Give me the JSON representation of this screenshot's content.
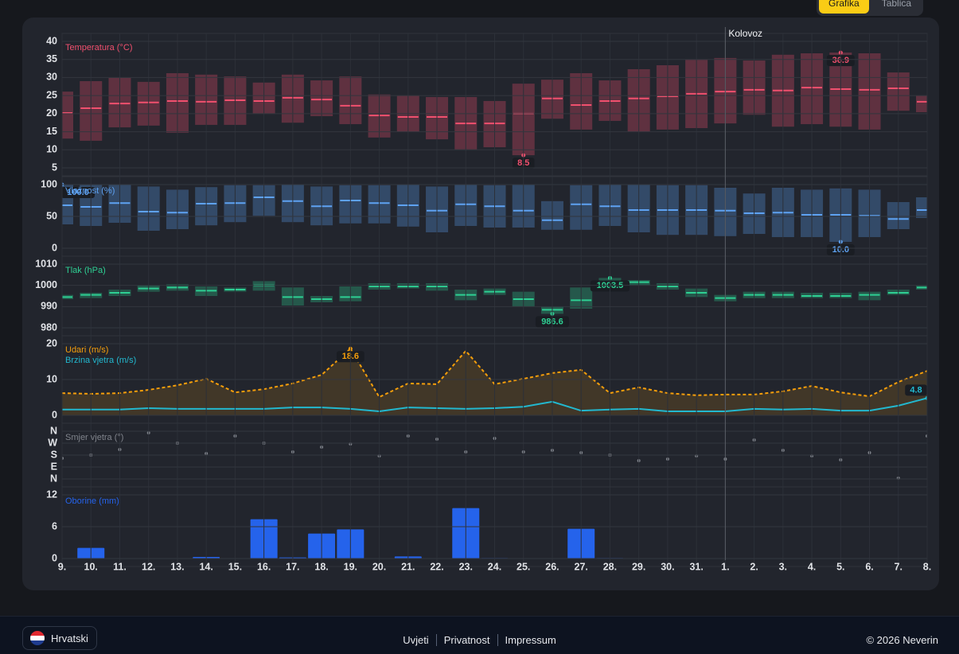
{
  "view_options": [
    "Grafika",
    "Tablica"
  ],
  "chart_data": [
    {
      "type": "range",
      "title": "Temperatura (°C)",
      "color": "#f0506e",
      "ylim": [
        5,
        40
      ],
      "yticks": [
        5,
        10,
        15,
        20,
        25,
        30,
        35,
        40
      ],
      "grid": true,
      "max": {
        "values": [
          26.1,
          29,
          29.9,
          28.8,
          31.2,
          30.8,
          30.3,
          28.6,
          30.8,
          29.2,
          30.3,
          25.3,
          25,
          24.6,
          24.6,
          23.5,
          28.3,
          29.4,
          31.2,
          29.2,
          32.3,
          33.4,
          34.9,
          35.4,
          34.7,
          36.3,
          36.7,
          36.9,
          36.7,
          31.4,
          25
        ],
        "value_labels": [
          null,
          null,
          null,
          null,
          null,
          null,
          null,
          null,
          null,
          null,
          null,
          null,
          null,
          null,
          null,
          null,
          null,
          null,
          null,
          null,
          null,
          null,
          null,
          null,
          null,
          null,
          null,
          "36.9",
          null,
          null,
          null
        ]
      },
      "min": {
        "values": [
          13.1,
          12.5,
          16.2,
          16.7,
          14.7,
          16.9,
          16.9,
          20,
          17.5,
          19.3,
          17.1,
          13.4,
          14.9,
          12.9,
          10.1,
          10.7,
          8.5,
          18.6,
          15.6,
          18,
          14.9,
          15.6,
          16,
          17.3,
          19.7,
          16.4,
          17.1,
          16.4,
          15.6,
          20.8,
          20.4
        ],
        "value_labels": [
          null,
          null,
          null,
          null,
          null,
          null,
          null,
          null,
          null,
          null,
          null,
          null,
          null,
          null,
          null,
          null,
          "8.5",
          null,
          null,
          null,
          null,
          null,
          null,
          null,
          null,
          null,
          null,
          null,
          null,
          null,
          null
        ]
      },
      "mean": {
        "values": [
          20.2,
          21.5,
          22.8,
          23.1,
          23.5,
          23.3,
          23.7,
          23.5,
          24.4,
          23.9,
          22.2,
          19.5,
          19.1,
          19.1,
          17.3,
          17.3,
          20,
          24.2,
          22.4,
          23.5,
          24.2,
          24.8,
          25.5,
          26.1,
          26.6,
          26.4,
          27.2,
          26.8,
          26.6,
          27,
          23.3
        ]
      }
    },
    {
      "type": "range",
      "title": "Vlažnost (%)",
      "color": "#5ea2f2",
      "ylim": [
        0,
        100
      ],
      "yticks": [
        0,
        50,
        100
      ],
      "grid": true,
      "max": {
        "values": [
          100,
          100,
          100,
          97,
          92,
          96,
          99,
          99,
          100,
          97,
          99,
          99,
          100,
          97,
          100,
          99,
          100,
          74,
          99,
          100,
          100,
          99,
          99,
          95,
          86,
          95,
          92,
          94,
          92,
          72.5,
          80
        ],
        "value_labels": [
          "100.0",
          null,
          null,
          null,
          null,
          null,
          null,
          null,
          null,
          null,
          null,
          null,
          null,
          null,
          null,
          null,
          null,
          null,
          null,
          null,
          null,
          null,
          null,
          null,
          null,
          null,
          null,
          null,
          null,
          null,
          null
        ]
      },
      "min": {
        "values": [
          37.5,
          35,
          40,
          27.5,
          30,
          36,
          41,
          51,
          41,
          36,
          39,
          39,
          34,
          25,
          35,
          32.5,
          32.5,
          29,
          29,
          35,
          25,
          21,
          21,
          19,
          22.5,
          17.5,
          17.5,
          10,
          17.5,
          30,
          47.5
        ],
        "value_labels": [
          null,
          null,
          null,
          null,
          null,
          null,
          null,
          null,
          null,
          null,
          null,
          null,
          null,
          null,
          null,
          null,
          null,
          null,
          null,
          null,
          null,
          null,
          null,
          null,
          null,
          null,
          null,
          "10.0",
          null,
          null,
          null
        ]
      },
      "mean": {
        "values": [
          67.5,
          65,
          71,
          57.5,
          56,
          70,
          71,
          80,
          74,
          66,
          75,
          71,
          67.5,
          59,
          69,
          66,
          59,
          44,
          69,
          66,
          60,
          60,
          60,
          59,
          55,
          56,
          52.5,
          52.5,
          51,
          46,
          60
        ]
      }
    },
    {
      "type": "range",
      "title": "Tlak (hPa)",
      "color": "#2ecf93",
      "ylim": [
        980,
        1010
      ],
      "yticks": [
        980,
        990,
        1000,
        1010
      ],
      "grid": true,
      "max": {
        "values": [
          995.5,
          996.5,
          998,
          1000,
          1000.5,
          999.5,
          999,
          1002,
          999,
          995,
          999.5,
          1001,
          1001,
          1001,
          998,
          998.5,
          997,
          990,
          999,
          1003.5,
          1002.5,
          1001,
          998.5,
          995.5,
          997,
          997,
          996.5,
          996.5,
          997,
          998,
          1000
        ],
        "value_labels": [
          null,
          null,
          null,
          null,
          null,
          null,
          null,
          null,
          null,
          null,
          null,
          null,
          null,
          null,
          null,
          null,
          null,
          null,
          null,
          "1003.5",
          null,
          null,
          null,
          null,
          null,
          null,
          null,
          null,
          null,
          null,
          null
        ]
      },
      "min": {
        "values": [
          993.5,
          994,
          995,
          997,
          997.5,
          995,
          997,
          997.5,
          990.5,
          992,
          992.5,
          998,
          998.5,
          997.5,
          993,
          995.5,
          990,
          986.6,
          989,
          1000,
          1000,
          998,
          994.5,
          992.5,
          994,
          994,
          994,
          994,
          993,
          995.5,
          998
        ],
        "value_labels": [
          null,
          null,
          null,
          null,
          null,
          null,
          null,
          null,
          null,
          null,
          null,
          null,
          null,
          null,
          null,
          null,
          null,
          "986.6",
          null,
          null,
          null,
          null,
          null,
          null,
          null,
          null,
          null,
          null,
          null,
          null,
          null
        ]
      },
      "mean": {
        "values": [
          994.5,
          995.5,
          996.5,
          998.5,
          999,
          997.5,
          998,
          1000,
          994.5,
          993.5,
          994.5,
          999.5,
          999.5,
          999.5,
          995.5,
          997,
          993.5,
          988.5,
          993,
          1002,
          1001.5,
          999.5,
          996.5,
          994,
          995.5,
          995.5,
          995,
          995,
          995.5,
          996.5,
          999
        ]
      }
    },
    {
      "type": "line",
      "ylim": [
        0,
        20
      ],
      "yticks": [
        0,
        10,
        20
      ],
      "grid": true,
      "series": [
        {
          "name": "Udari (m/s)",
          "color": "#f59e0b",
          "dashed": true,
          "fill": true,
          "values": [
            6.2,
            6,
            6.2,
            7.1,
            8.4,
            10.2,
            6.4,
            7.3,
            8.9,
            11.3,
            18.6,
            5.1,
            8.9,
            8.7,
            18,
            8.7,
            10.2,
            11.8,
            12.7,
            6.2,
            7.8,
            6.2,
            5.6,
            5.8,
            5.8,
            6.7,
            8.2,
            6.4,
            5.3,
            9.3,
            12.4
          ],
          "value_labels": [
            null,
            null,
            null,
            null,
            null,
            null,
            null,
            null,
            null,
            null,
            "18.6",
            null,
            null,
            null,
            null,
            null,
            null,
            null,
            null,
            null,
            null,
            null,
            null,
            null,
            null,
            null,
            null,
            null,
            null,
            null,
            null
          ]
        },
        {
          "name": "Brzina vjetra (m/s)",
          "color": "#22b8cf",
          "dashed": false,
          "fill": false,
          "values": [
            1.6,
            1.6,
            1.6,
            2,
            1.8,
            1.8,
            1.8,
            1.8,
            2.2,
            2.2,
            1.8,
            1.1,
            2.2,
            2,
            1.8,
            2,
            2.4,
            3.8,
            1.3,
            1.6,
            1.8,
            1.1,
            1.1,
            1.1,
            1.8,
            1.6,
            1.8,
            1.3,
            1.3,
            2.7,
            4.8
          ],
          "value_labels": [
            null,
            null,
            null,
            null,
            null,
            null,
            null,
            null,
            null,
            null,
            null,
            null,
            null,
            null,
            null,
            null,
            null,
            null,
            null,
            null,
            null,
            null,
            null,
            null,
            null,
            null,
            null,
            null,
            null,
            null,
            "4.8"
          ]
        }
      ]
    },
    {
      "type": "scatter",
      "title": "Smjer vjetra (°)",
      "color": "#80848c",
      "ylim": [
        0,
        360
      ],
      "yticks": [
        {
          "value": 0,
          "label": "N"
        },
        {
          "value": 90,
          "label": "E"
        },
        {
          "value": 180,
          "label": "S"
        },
        {
          "value": 270,
          "label": "W"
        },
        {
          "value": 360,
          "label": "N"
        }
      ],
      "grid": true,
      "values": [
        156,
        180,
        222,
        348,
        270,
        192,
        324,
        270,
        204,
        240,
        264,
        174,
        324,
        300,
        204,
        306,
        204,
        216,
        198,
        180,
        138,
        150,
        174,
        150,
        294,
        216,
        174,
        144,
        198,
        6,
        324
      ]
    },
    {
      "type": "bar",
      "title": "Oborine (mm)",
      "color": "#2563eb",
      "ylim": [
        0,
        12
      ],
      "yticks": [
        0,
        6,
        12
      ],
      "grid": true,
      "categories": [
        "9.",
        "10.",
        "11.",
        "12.",
        "13.",
        "14.",
        "15.",
        "16.",
        "17.",
        "18.",
        "19.",
        "20.",
        "21.",
        "22.",
        "23.",
        "24.",
        "25.",
        "26.",
        "27.",
        "28.",
        "29.",
        "30.",
        "31.",
        "1.",
        "2.",
        "3.",
        "4.",
        "5.",
        "6.",
        "7.",
        "8."
      ],
      "values": [
        0,
        2,
        0,
        0,
        0,
        0.3,
        0,
        7.4,
        0.2,
        4.7,
        5.5,
        0,
        0.4,
        0,
        9.5,
        0.1,
        0,
        0,
        5.6,
        0.1,
        0,
        0,
        0,
        0,
        0,
        0,
        0,
        0,
        0,
        0,
        0
      ],
      "annotations": [
        {
          "text": "Kolovoz",
          "x": "1."
        }
      ]
    }
  ],
  "footer": {
    "language": "Hrvatski",
    "links": [
      "Uvjeti",
      "Privatnost",
      "Impressum"
    ],
    "copyright": "© 2026 Neverin"
  }
}
